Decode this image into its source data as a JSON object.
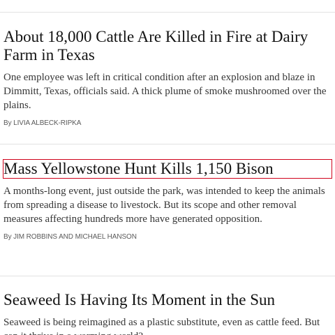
{
  "articles": [
    {
      "headline": "About 18,000 Cattle Are Killed in Fire at Dairy Farm in Texas",
      "summary": "One employee was left in critical condition after an explosion and blaze in Dimmitt, Texas, officials said. A thick plume of smoke mushroomed over the plains.",
      "byline_prefix": "By ",
      "byline_authors": "Livia Albeck-Ripka"
    },
    {
      "headline": "Mass Yellowstone Hunt Kills 1,150 Bison",
      "summary": "A months-long event, just outside the park, was intended to keep the animals from spreading a disease to livestock. But its scope and other removal measures affecting hundreds more have generated opposition.",
      "byline_prefix": "By ",
      "byline_authors": "Jim Robbins and Michael Hanson"
    },
    {
      "headline": "Seaweed Is Having Its Moment in the Sun",
      "summary": "Seaweed is being reimagined as a plastic substitute, even as cattle feed. But can it thrive in a warming world?"
    }
  ],
  "colors": {
    "focus_outline": "#d0021b",
    "divider": "#e2e2e2"
  }
}
